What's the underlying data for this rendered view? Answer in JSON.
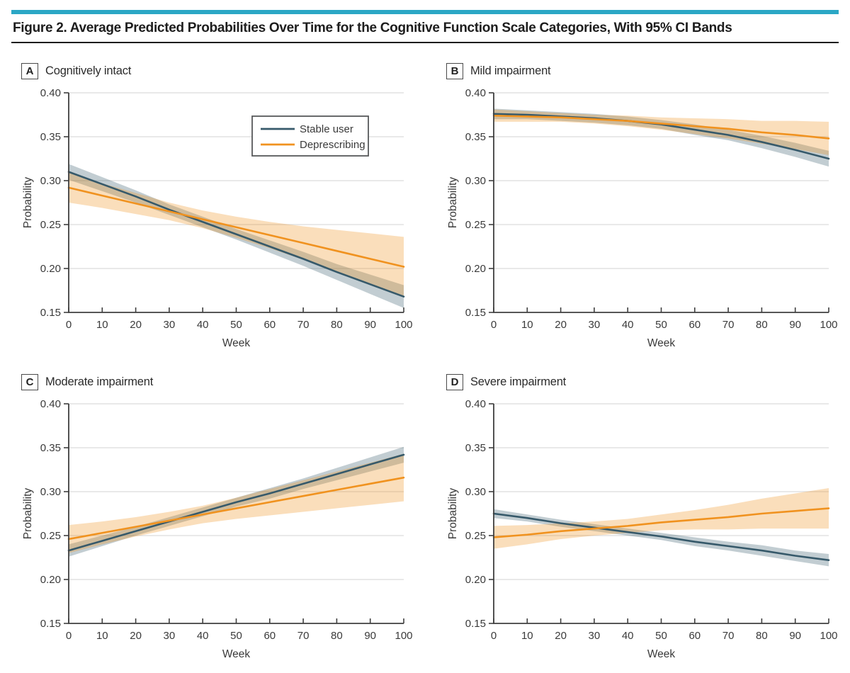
{
  "header": {
    "title": "Figure 2. Average Predicted Probabilities Over Time for the Cognitive Function Scale Categories, With 95% CI Bands"
  },
  "theme": {
    "accent_color": "#2ba7c5",
    "stable_color": "#36596a",
    "deprescribing_color": "#f0921f",
    "grid_color": "#dcdcdc",
    "axis_color": "#3f3f3f",
    "text_color": "#3a3a3a",
    "legend_border": "#58595b",
    "band_opacity": 0.3
  },
  "legend": {
    "items": [
      {
        "label": "Stable user",
        "color": "#36596a"
      },
      {
        "label": "Deprescribing",
        "color": "#f0921f"
      }
    ]
  },
  "chart_data": [
    {
      "type": "line",
      "panel": "A",
      "title": "Cognitively intact",
      "xlabel": "Week",
      "ylabel": "Probability",
      "xlim": [
        0,
        100
      ],
      "ylim": [
        0.15,
        0.4
      ],
      "grid": "horizontal",
      "show_legend": true,
      "legend_position": "inside upper right",
      "xticks": [
        0,
        10,
        20,
        30,
        40,
        50,
        60,
        70,
        80,
        90,
        100
      ],
      "xtick_labels": [
        "0",
        "10",
        "20",
        "30",
        "40",
        "50",
        "60",
        "70",
        "80",
        "90",
        "100"
      ],
      "yticks": [
        0.15,
        0.2,
        0.25,
        0.3,
        0.35,
        0.4
      ],
      "ytick_labels": [
        "0.15",
        "0.20",
        "0.25",
        "0.30",
        "0.35",
        "0.40"
      ],
      "x": [
        0,
        10,
        20,
        30,
        40,
        50,
        60,
        70,
        80,
        90,
        100
      ],
      "series": [
        {
          "name": "Stable user",
          "color": "#36596a",
          "values": [
            0.31,
            0.296,
            0.282,
            0.267,
            0.253,
            0.239,
            0.225,
            0.211,
            0.196,
            0.182,
            0.168
          ],
          "upper": [
            0.319,
            0.304,
            0.289,
            0.273,
            0.259,
            0.245,
            0.232,
            0.219,
            0.205,
            0.193,
            0.181
          ],
          "lower": [
            0.301,
            0.288,
            0.275,
            0.261,
            0.247,
            0.233,
            0.218,
            0.203,
            0.187,
            0.171,
            0.155
          ]
        },
        {
          "name": "Deprescribing",
          "color": "#f0921f",
          "values": [
            0.292,
            0.283,
            0.274,
            0.265,
            0.256,
            0.247,
            0.238,
            0.229,
            0.22,
            0.211,
            0.202
          ],
          "upper": [
            0.309,
            0.297,
            0.286,
            0.275,
            0.266,
            0.259,
            0.253,
            0.248,
            0.244,
            0.24,
            0.236
          ],
          "lower": [
            0.275,
            0.269,
            0.262,
            0.255,
            0.246,
            0.235,
            0.223,
            0.21,
            0.196,
            0.182,
            0.168
          ]
        }
      ]
    },
    {
      "type": "line",
      "panel": "B",
      "title": "Mild impairment",
      "xlabel": "Week",
      "ylabel": "Probability",
      "xlim": [
        0,
        100
      ],
      "ylim": [
        0.15,
        0.4
      ],
      "grid": "horizontal",
      "show_legend": false,
      "xticks": [
        0,
        10,
        20,
        30,
        40,
        50,
        60,
        70,
        80,
        90,
        100
      ],
      "xtick_labels": [
        "0",
        "10",
        "20",
        "30",
        "40",
        "50",
        "60",
        "70",
        "80",
        "90",
        "100"
      ],
      "yticks": [
        0.15,
        0.2,
        0.25,
        0.3,
        0.35,
        0.4
      ],
      "ytick_labels": [
        "0.15",
        "0.20",
        "0.25",
        "0.30",
        "0.35",
        "0.40"
      ],
      "x": [
        0,
        10,
        20,
        30,
        40,
        50,
        60,
        70,
        80,
        90,
        100
      ],
      "series": [
        {
          "name": "Stable user",
          "color": "#36596a",
          "values": [
            0.376,
            0.375,
            0.373,
            0.371,
            0.368,
            0.364,
            0.358,
            0.352,
            0.344,
            0.335,
            0.325
          ],
          "upper": [
            0.382,
            0.38,
            0.378,
            0.376,
            0.373,
            0.369,
            0.364,
            0.358,
            0.351,
            0.343,
            0.334
          ],
          "lower": [
            0.37,
            0.37,
            0.368,
            0.366,
            0.363,
            0.359,
            0.352,
            0.346,
            0.337,
            0.327,
            0.316
          ]
        },
        {
          "name": "Deprescribing",
          "color": "#f0921f",
          "values": [
            0.374,
            0.373,
            0.372,
            0.37,
            0.368,
            0.365,
            0.362,
            0.359,
            0.355,
            0.352,
            0.348
          ],
          "upper": [
            0.381,
            0.379,
            0.377,
            0.375,
            0.374,
            0.372,
            0.371,
            0.37,
            0.368,
            0.368,
            0.367
          ],
          "lower": [
            0.367,
            0.367,
            0.367,
            0.365,
            0.362,
            0.358,
            0.353,
            0.348,
            0.342,
            0.336,
            0.329
          ]
        }
      ]
    },
    {
      "type": "line",
      "panel": "C",
      "title": "Moderate impairment",
      "xlabel": "Week",
      "ylabel": "Probability",
      "xlim": [
        0,
        100
      ],
      "ylim": [
        0.15,
        0.4
      ],
      "grid": "horizontal",
      "show_legend": false,
      "xticks": [
        0,
        10,
        20,
        30,
        40,
        50,
        60,
        70,
        80,
        90,
        100
      ],
      "xtick_labels": [
        "0",
        "10",
        "20",
        "30",
        "40",
        "50",
        "60",
        "70",
        "80",
        "90",
        "100"
      ],
      "yticks": [
        0.15,
        0.2,
        0.25,
        0.3,
        0.35,
        0.4
      ],
      "ytick_labels": [
        "0.15",
        "0.20",
        "0.25",
        "0.30",
        "0.35",
        "0.40"
      ],
      "x": [
        0,
        10,
        20,
        30,
        40,
        50,
        60,
        70,
        80,
        90,
        100
      ],
      "series": [
        {
          "name": "Stable user",
          "color": "#36596a",
          "values": [
            0.233,
            0.244,
            0.255,
            0.266,
            0.277,
            0.288,
            0.298,
            0.309,
            0.32,
            0.331,
            0.342
          ],
          "upper": [
            0.24,
            0.25,
            0.26,
            0.271,
            0.282,
            0.293,
            0.304,
            0.315,
            0.327,
            0.339,
            0.351
          ],
          "lower": [
            0.226,
            0.238,
            0.25,
            0.261,
            0.272,
            0.283,
            0.292,
            0.303,
            0.313,
            0.323,
            0.333
          ]
        },
        {
          "name": "Deprescribing",
          "color": "#f0921f",
          "values": [
            0.246,
            0.253,
            0.26,
            0.267,
            0.274,
            0.281,
            0.288,
            0.295,
            0.302,
            0.309,
            0.316
          ],
          "upper": [
            0.262,
            0.266,
            0.271,
            0.277,
            0.284,
            0.293,
            0.303,
            0.313,
            0.323,
            0.333,
            0.343
          ],
          "lower": [
            0.23,
            0.24,
            0.249,
            0.257,
            0.264,
            0.269,
            0.273,
            0.277,
            0.281,
            0.285,
            0.289
          ]
        }
      ]
    },
    {
      "type": "line",
      "panel": "D",
      "title": "Severe impairment",
      "xlabel": "Week",
      "ylabel": "Probability",
      "xlim": [
        0,
        100
      ],
      "ylim": [
        0.15,
        0.4
      ],
      "grid": "horizontal",
      "show_legend": false,
      "xticks": [
        0,
        10,
        20,
        30,
        40,
        50,
        60,
        70,
        80,
        90,
        100
      ],
      "xtick_labels": [
        "0",
        "10",
        "20",
        "30",
        "40",
        "50",
        "60",
        "70",
        "80",
        "90",
        "100"
      ],
      "yticks": [
        0.15,
        0.2,
        0.25,
        0.3,
        0.35,
        0.4
      ],
      "ytick_labels": [
        "0.15",
        "0.20",
        "0.25",
        "0.30",
        "0.35",
        "0.40"
      ],
      "x": [
        0,
        10,
        20,
        30,
        40,
        50,
        60,
        70,
        80,
        90,
        100
      ],
      "series": [
        {
          "name": "Stable user",
          "color": "#36596a",
          "values": [
            0.275,
            0.27,
            0.264,
            0.259,
            0.254,
            0.249,
            0.243,
            0.238,
            0.233,
            0.227,
            0.222
          ],
          "upper": [
            0.28,
            0.274,
            0.268,
            0.263,
            0.258,
            0.253,
            0.248,
            0.243,
            0.239,
            0.233,
            0.229
          ],
          "lower": [
            0.27,
            0.266,
            0.26,
            0.255,
            0.25,
            0.245,
            0.238,
            0.233,
            0.227,
            0.221,
            0.215
          ]
        },
        {
          "name": "Deprescribing",
          "color": "#f0921f",
          "values": [
            0.248,
            0.251,
            0.255,
            0.258,
            0.261,
            0.265,
            0.268,
            0.271,
            0.275,
            0.278,
            0.281
          ],
          "upper": [
            0.261,
            0.262,
            0.264,
            0.266,
            0.269,
            0.274,
            0.279,
            0.285,
            0.292,
            0.298,
            0.304
          ],
          "lower": [
            0.235,
            0.24,
            0.246,
            0.25,
            0.253,
            0.256,
            0.257,
            0.257,
            0.258,
            0.258,
            0.258
          ]
        }
      ]
    }
  ]
}
